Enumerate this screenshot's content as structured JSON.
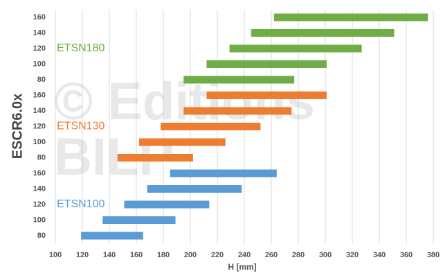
{
  "chart_data": {
    "type": "floating_bar",
    "y_label": "ESCR6.0x",
    "x_label": "H [mm]",
    "watermark": [
      "© Editions",
      "BILP"
    ],
    "categories": [
      "80",
      "100",
      "120",
      "140",
      "160"
    ],
    "series": [
      {
        "name": "ETSN100",
        "color": "#5b9bd5",
        "low": [
          119,
          135,
          151,
          168,
          185
        ],
        "high": [
          165,
          189,
          214,
          238,
          264
        ]
      },
      {
        "name": "ETSN130",
        "color": "#ed7d31",
        "low": [
          146,
          162,
          178,
          195,
          212
        ],
        "high": [
          202,
          226,
          252,
          275,
          301
        ]
      },
      {
        "name": "ETSN180",
        "color": "#70ad47",
        "low": [
          195,
          212,
          229,
          245,
          262
        ],
        "high": [
          277,
          301,
          327,
          351,
          376
        ]
      }
    ],
    "xlim": [
      100,
      380
    ],
    "xticks": [
      100,
      120,
      140,
      160,
      180,
      200,
      220,
      240,
      260,
      280,
      300,
      320,
      340,
      360,
      380
    ],
    "grid": true
  }
}
